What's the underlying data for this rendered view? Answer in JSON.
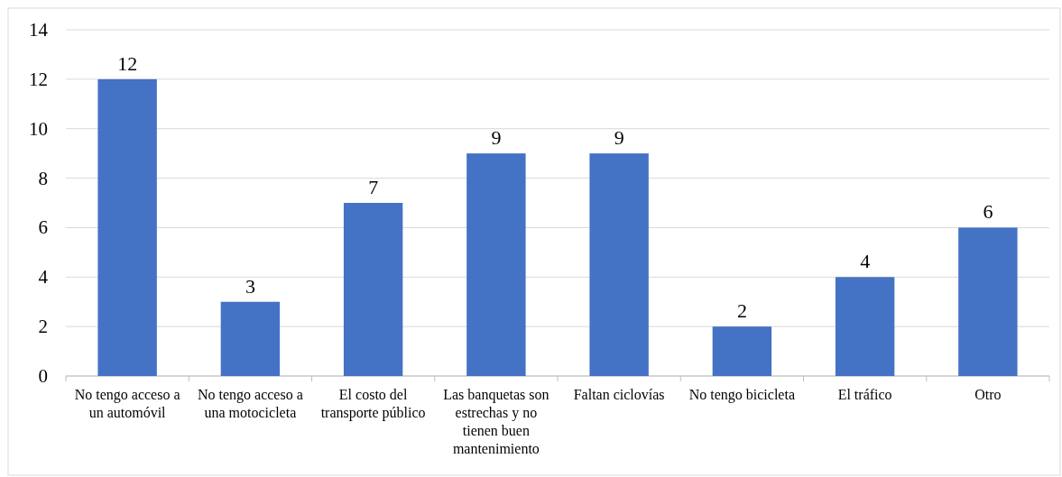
{
  "chart_data": {
    "type": "bar",
    "categories": [
      "No tengo acceso a un automóvil",
      "No tengo acceso a una motocicleta",
      "El costo del transporte público",
      "Las banquetas son estrechas y no tienen buen mantenimiento",
      "Faltan ciclovías",
      "No tengo bicicleta",
      "El tráfico",
      "Otro"
    ],
    "values": [
      12,
      3,
      7,
      9,
      9,
      2,
      4,
      6
    ],
    "color": "#4472c4",
    "ylim": [
      0,
      14
    ],
    "yticks": [
      0,
      2,
      4,
      6,
      8,
      10,
      12,
      14
    ],
    "grid": "y",
    "data_labels": true
  }
}
